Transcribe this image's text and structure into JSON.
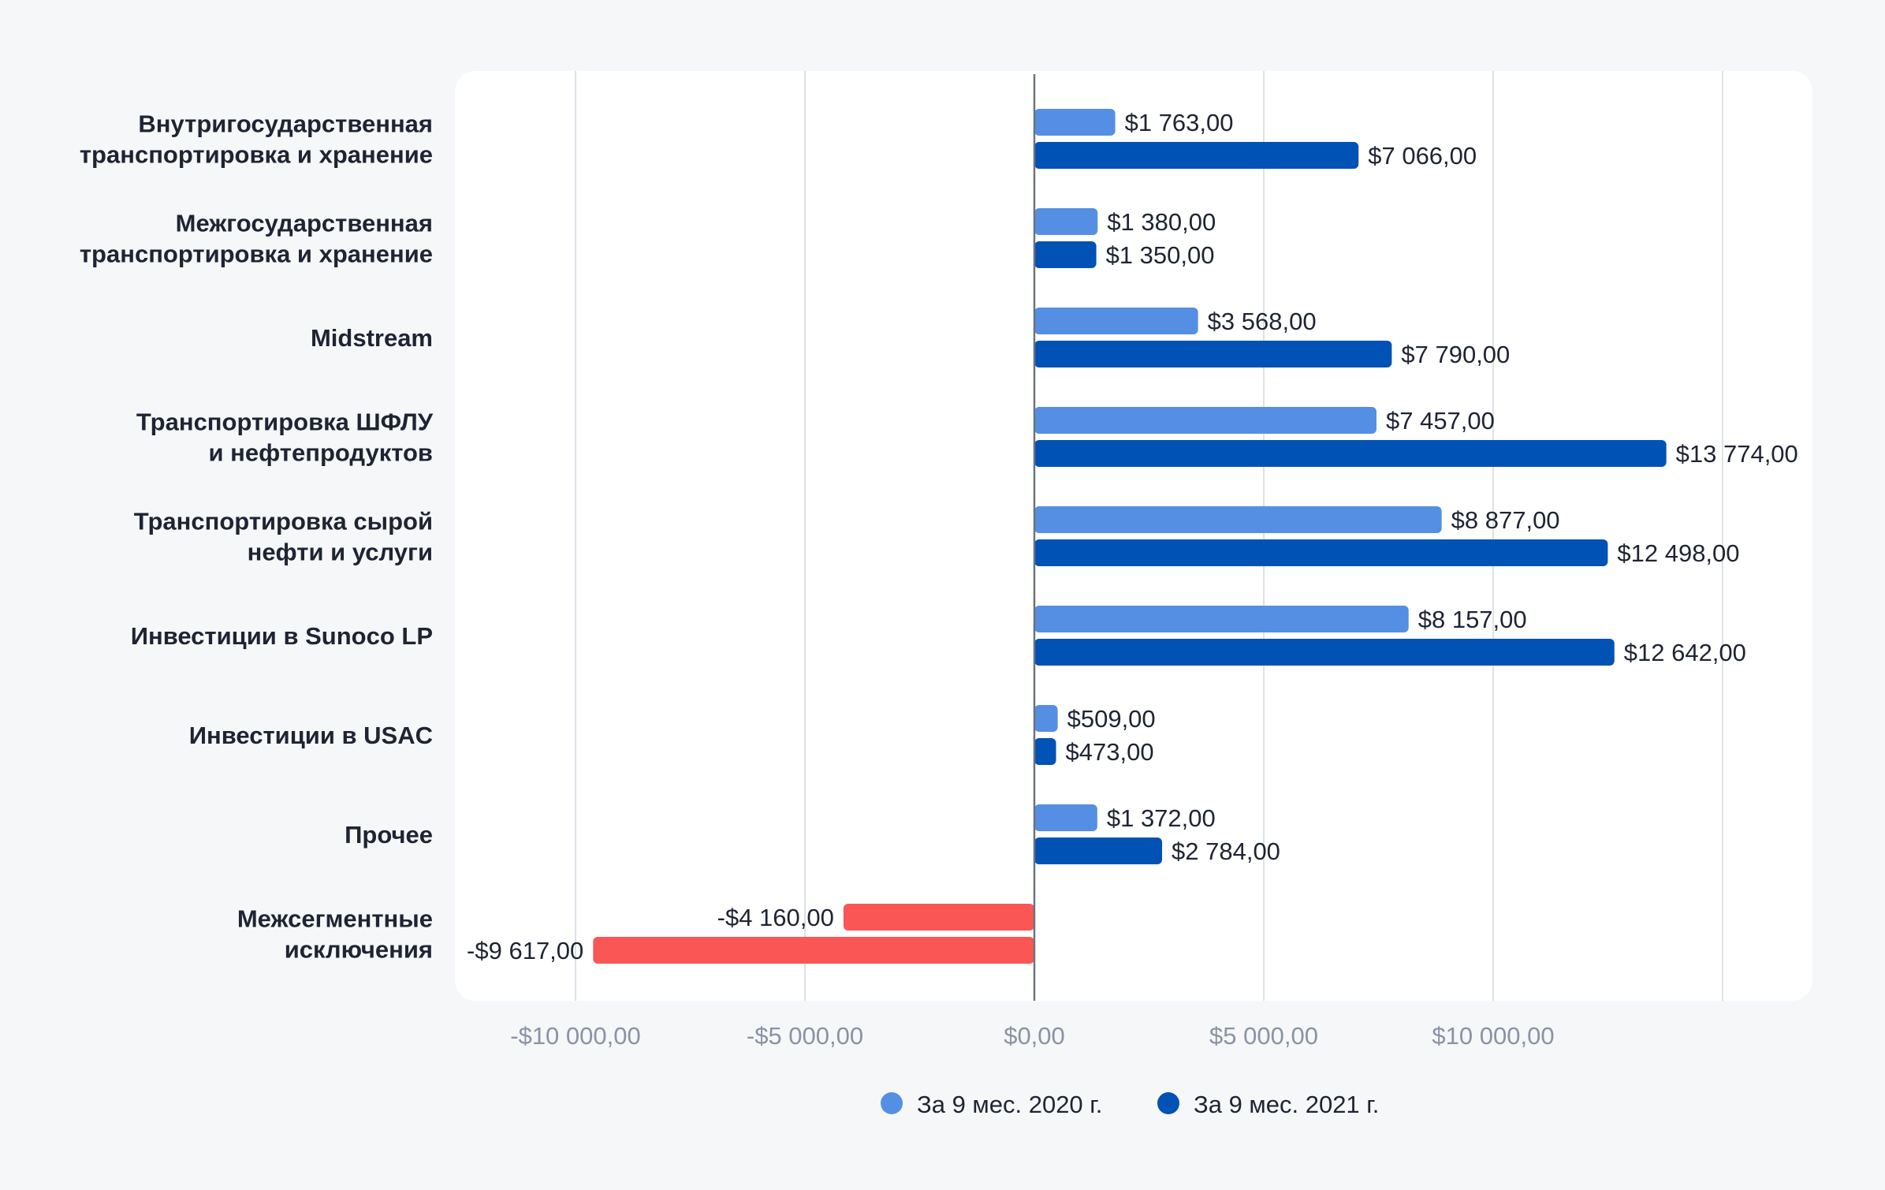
{
  "chart_data": {
    "type": "bar",
    "orientation": "horizontal",
    "categories": [
      [
        "Внутригосударственная",
        "транспортировка и хранение"
      ],
      [
        "Межгосударственная",
        "транспортировка и хранение"
      ],
      [
        "Midstream"
      ],
      [
        "Транспортировка ШФЛУ",
        "и нефтепродуктов"
      ],
      [
        "Транспортировка сырой",
        "нефти и услуги"
      ],
      [
        "Инвестиции в Sunoco LP"
      ],
      [
        "Инвестиции в USAC"
      ],
      [
        "Прочее"
      ],
      [
        "Межсегментные",
        "исключения"
      ]
    ],
    "series": [
      {
        "name": "За 9 мес. 2020 г.",
        "color": "#558fe3",
        "values": [
          1763,
          1380,
          3568,
          7457,
          8877,
          8157,
          509,
          1372,
          -4160
        ],
        "labels": [
          "$1 763,00",
          "$1 380,00",
          "$3 568,00",
          "$7 457,00",
          "$8 877,00",
          "$8 157,00",
          "$509,00",
          "$1 372,00",
          "-$4 160,00"
        ]
      },
      {
        "name": "За 9 мес. 2021 г.",
        "color": "#0052b4",
        "values": [
          7066,
          1350,
          7790,
          13774,
          12498,
          12642,
          473,
          2784,
          -9617
        ],
        "labels": [
          "$7 066,00",
          "$1 350,00",
          "$7 790,00",
          "$13 774,00",
          "$12 498,00",
          "$12 642,00",
          "$473,00",
          "$2 784,00",
          "-$9 617,00"
        ]
      }
    ],
    "negative_color": "#f95655",
    "xlim": [
      -12500,
      17000
    ],
    "ticks": [
      -10000,
      -5000,
      0,
      5000,
      10000
    ],
    "tick_labels": [
      "-$10 000,00",
      "-$5 000,00",
      "$0,00",
      "$5 000,00",
      "$10 000,00"
    ],
    "gridlines": [
      -10000,
      -5000,
      5000,
      10000,
      15000
    ],
    "legend_position": "bottom-center"
  }
}
